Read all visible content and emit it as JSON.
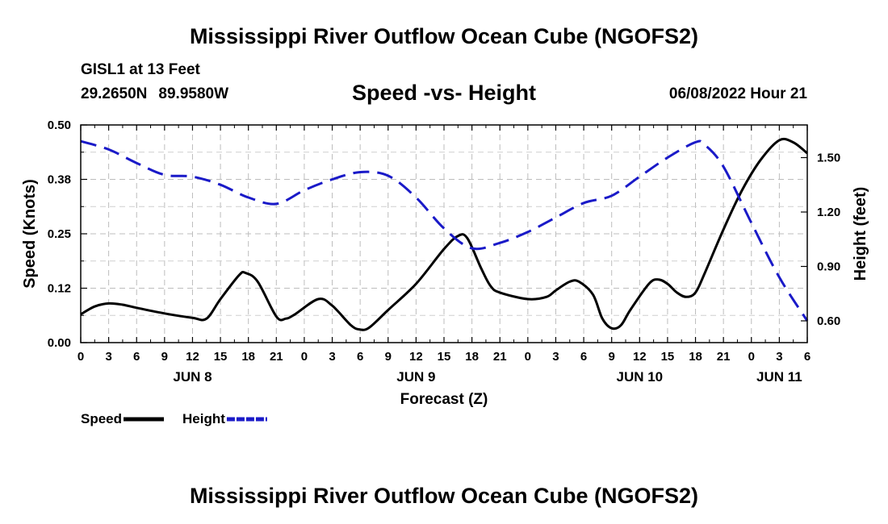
{
  "page": {
    "title_top": "Mississippi River Outflow Ocean Cube (NGOFS2)",
    "title_bottom": "Mississippi River Outflow Ocean Cube (NGOFS2)",
    "station": "GISL1 at 13 Feet",
    "latitude": "29.2650N",
    "longitude": "89.9580W",
    "subtitle": "Speed -vs- Height",
    "timestamp": "06/08/2022 Hour 21"
  },
  "chart_data": {
    "type": "line",
    "title": "Speed -vs- Height",
    "xlabel": "Forecast (Z)",
    "ylabel_left": "Speed (Knots)",
    "ylabel_right": "Height (feet)",
    "x_unit": "hours since 2022-06-08 00Z",
    "xlim": [
      0,
      78
    ],
    "ylim_left": [
      0,
      0.5
    ],
    "ylim_right": [
      0.48,
      1.68
    ],
    "x_ticks": [
      {
        "x": 0,
        "label": "0"
      },
      {
        "x": 3,
        "label": "3"
      },
      {
        "x": 6,
        "label": "6"
      },
      {
        "x": 9,
        "label": "9"
      },
      {
        "x": 12,
        "label": "12"
      },
      {
        "x": 15,
        "label": "15"
      },
      {
        "x": 18,
        "label": "18"
      },
      {
        "x": 21,
        "label": "21"
      },
      {
        "x": 24,
        "label": "0"
      },
      {
        "x": 27,
        "label": "3"
      },
      {
        "x": 30,
        "label": "6"
      },
      {
        "x": 33,
        "label": "9"
      },
      {
        "x": 36,
        "label": "12"
      },
      {
        "x": 39,
        "label": "15"
      },
      {
        "x": 42,
        "label": "18"
      },
      {
        "x": 45,
        "label": "21"
      },
      {
        "x": 48,
        "label": "0"
      },
      {
        "x": 51,
        "label": "3"
      },
      {
        "x": 54,
        "label": "6"
      },
      {
        "x": 57,
        "label": "9"
      },
      {
        "x": 60,
        "label": "12"
      },
      {
        "x": 63,
        "label": "15"
      },
      {
        "x": 66,
        "label": "18"
      },
      {
        "x": 69,
        "label": "21"
      },
      {
        "x": 72,
        "label": "0"
      },
      {
        "x": 75,
        "label": "3"
      },
      {
        "x": 78,
        "label": "6"
      }
    ],
    "day_labels": [
      {
        "x": 12,
        "label": "JUN 8"
      },
      {
        "x": 36,
        "label": "JUN 9"
      },
      {
        "x": 60,
        "label": "JUN 10"
      },
      {
        "x": 75,
        "label": "JUN 11"
      }
    ],
    "y_left_ticks": [
      "0.00",
      "0.12",
      "0.25",
      "0.38",
      "0.50"
    ],
    "y_left_tick_values": [
      0,
      0.125,
      0.25,
      0.375,
      0.5
    ],
    "y_right_ticks": [
      "0.60",
      "0.90",
      "1.20",
      "1.50"
    ],
    "y_right_tick_values": [
      0.6,
      0.9,
      1.2,
      1.5
    ],
    "grid": true,
    "legend_position": "bottom-left",
    "series": [
      {
        "name": "Speed",
        "axis": "left",
        "color": "#000000",
        "dash": "solid",
        "points": [
          [
            0,
            0.065
          ],
          [
            1.5,
            0.083
          ],
          [
            3,
            0.09
          ],
          [
            4.5,
            0.087
          ],
          [
            6,
            0.08
          ],
          [
            9,
            0.067
          ],
          [
            12,
            0.057
          ],
          [
            13.5,
            0.055
          ],
          [
            15,
            0.1
          ],
          [
            17,
            0.155
          ],
          [
            17.7,
            0.16
          ],
          [
            19,
            0.14
          ],
          [
            21,
            0.06
          ],
          [
            22,
            0.055
          ],
          [
            23,
            0.065
          ],
          [
            25.5,
            0.1
          ],
          [
            27,
            0.085
          ],
          [
            29,
            0.04
          ],
          [
            30,
            0.03
          ],
          [
            31,
            0.035
          ],
          [
            33,
            0.075
          ],
          [
            36,
            0.135
          ],
          [
            39,
            0.215
          ],
          [
            40.5,
            0.245
          ],
          [
            41.5,
            0.24
          ],
          [
            43,
            0.17
          ],
          [
            44,
            0.13
          ],
          [
            45,
            0.115
          ],
          [
            48,
            0.1
          ],
          [
            50,
            0.105
          ],
          [
            51,
            0.12
          ],
          [
            52.5,
            0.14
          ],
          [
            53.5,
            0.14
          ],
          [
            55,
            0.11
          ],
          [
            56,
            0.055
          ],
          [
            57,
            0.033
          ],
          [
            58,
            0.04
          ],
          [
            59,
            0.075
          ],
          [
            61,
            0.135
          ],
          [
            62,
            0.145
          ],
          [
            63,
            0.135
          ],
          [
            64,
            0.115
          ],
          [
            65,
            0.105
          ],
          [
            66,
            0.115
          ],
          [
            67,
            0.16
          ],
          [
            69,
            0.26
          ],
          [
            71,
            0.35
          ],
          [
            73,
            0.42
          ],
          [
            75,
            0.465
          ],
          [
            76.5,
            0.46
          ],
          [
            78,
            0.435
          ]
        ]
      },
      {
        "name": "Height",
        "axis": "right",
        "color": "#1a1ac8",
        "dash": "dashed",
        "points": [
          [
            0,
            1.59
          ],
          [
            3,
            1.545
          ],
          [
            6,
            1.47
          ],
          [
            9,
            1.405
          ],
          [
            12,
            1.395
          ],
          [
            15,
            1.35
          ],
          [
            18,
            1.28
          ],
          [
            21,
            1.245
          ],
          [
            24,
            1.32
          ],
          [
            27,
            1.38
          ],
          [
            30,
            1.42
          ],
          [
            33,
            1.4
          ],
          [
            36,
            1.28
          ],
          [
            39,
            1.11
          ],
          [
            42,
            1.0
          ],
          [
            45,
            1.03
          ],
          [
            48,
            1.09
          ],
          [
            51,
            1.17
          ],
          [
            54,
            1.25
          ],
          [
            57,
            1.29
          ],
          [
            60,
            1.395
          ],
          [
            63,
            1.5
          ],
          [
            66,
            1.585
          ],
          [
            67,
            1.57
          ],
          [
            69,
            1.45
          ],
          [
            72,
            1.14
          ],
          [
            75,
            0.84
          ],
          [
            78,
            0.6
          ]
        ]
      }
    ]
  }
}
